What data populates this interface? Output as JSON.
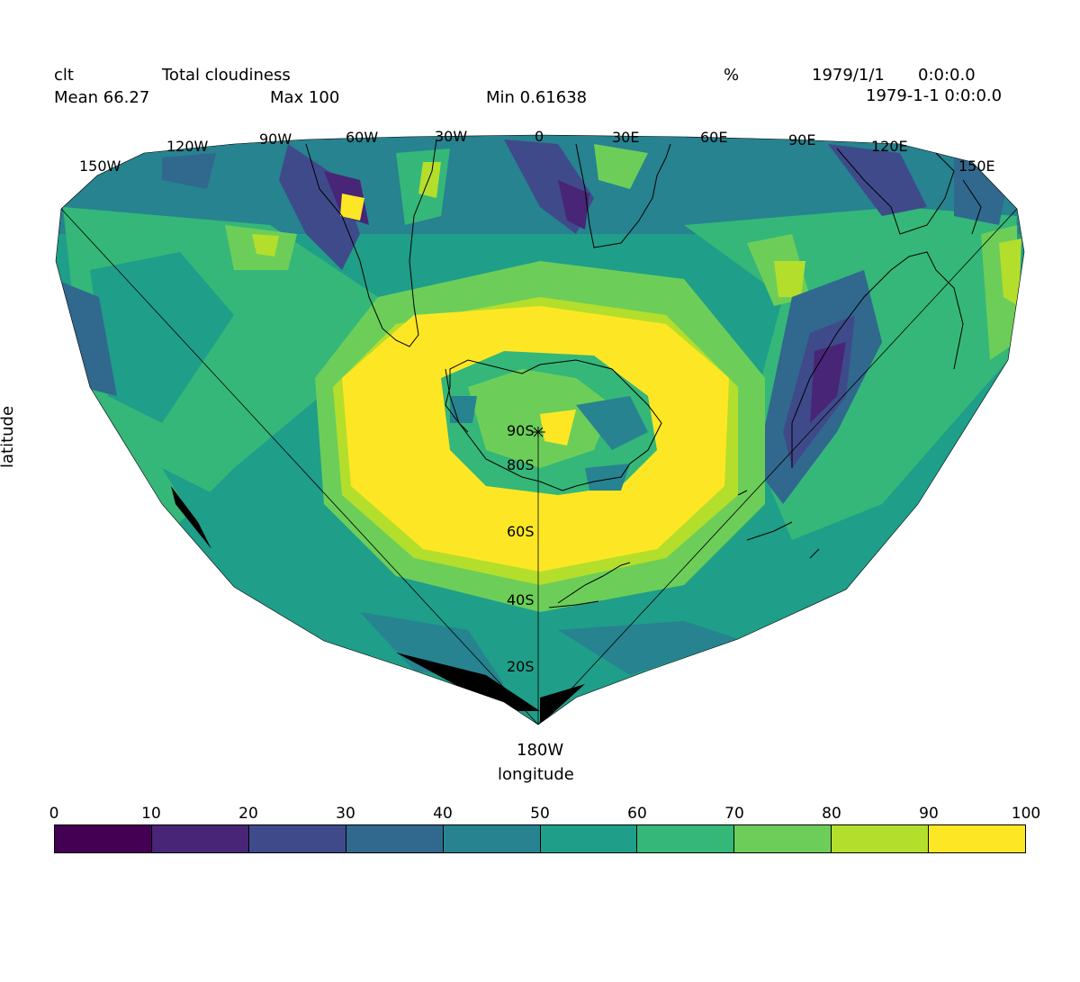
{
  "header": {
    "var_name": "clt",
    "long_name": "Total cloudiness",
    "units": "%",
    "date": "1979/1/1",
    "time": "0:0:0.0",
    "mean": "Mean 66.27",
    "max": "Max 100",
    "min": "Min 0.61638",
    "datetime": "1979-1-1 0:0:0.0"
  },
  "axes": {
    "xlabel": "longitude",
    "ylabel": "latitude",
    "bottom_label": "180W",
    "lon_labels": [
      "150W",
      "120W",
      "90W",
      "60W",
      "30W",
      "0",
      "30E",
      "60E",
      "90E",
      "120E",
      "150E"
    ],
    "lat_labels": [
      "90S",
      "80S",
      "60S",
      "40S",
      "20S"
    ]
  },
  "colorbar": {
    "ticks": [
      "0",
      "10",
      "20",
      "30",
      "40",
      "50",
      "60",
      "70",
      "80",
      "90",
      "100"
    ],
    "colors": [
      "#440154",
      "#482576",
      "#3f4a8a",
      "#31688e",
      "#26838f",
      "#1f9e89",
      "#35b779",
      "#6cce59",
      "#b4de2c",
      "#fde725"
    ]
  }
}
